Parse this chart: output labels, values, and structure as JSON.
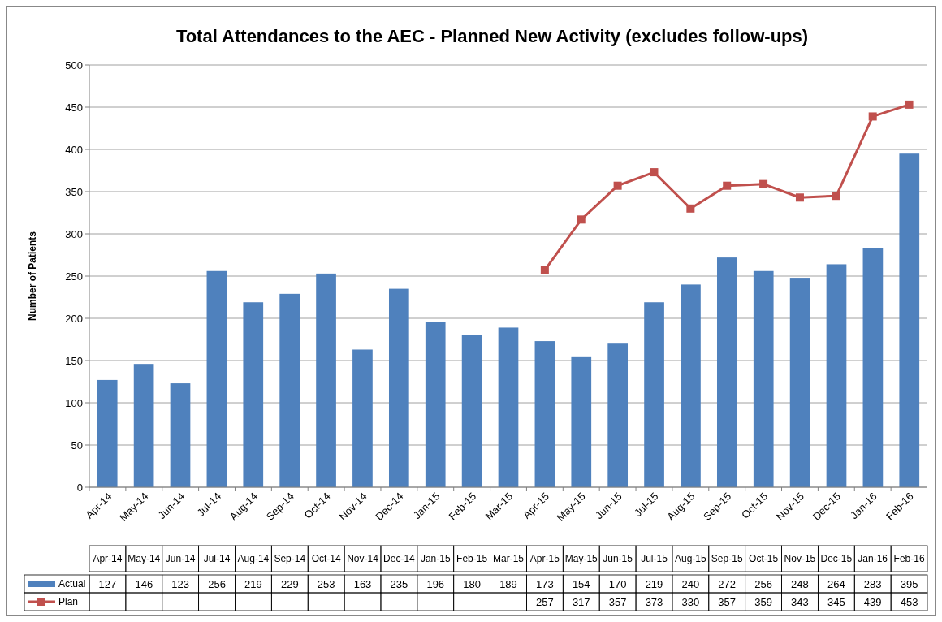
{
  "chart_data": {
    "type": "bar",
    "title": "Total Attendances to the AEC - Planned New Activity (excludes follow-ups)",
    "ylabel": "Number of Patients",
    "categories": [
      "Apr-14",
      "May-14",
      "Jun-14",
      "Jul-14",
      "Aug-14",
      "Sep-14",
      "Oct-14",
      "Nov-14",
      "Dec-14",
      "Jan-15",
      "Feb-15",
      "Mar-15",
      "Apr-15",
      "May-15",
      "Jun-15",
      "Jul-15",
      "Aug-15",
      "Sep-15",
      "Oct-15",
      "Nov-15",
      "Dec-15",
      "Jan-16",
      "Feb-16"
    ],
    "series": [
      {
        "name": "Actual",
        "color": "#4f81bd",
        "values": [
          127,
          146,
          123,
          256,
          219,
          229,
          253,
          163,
          235,
          196,
          180,
          189,
          173,
          154,
          170,
          219,
          240,
          272,
          256,
          248,
          264,
          283,
          395
        ]
      },
      {
        "name": "Plan",
        "type": "line",
        "color": "#c0504d",
        "marker": "square",
        "values": [
          null,
          null,
          null,
          null,
          null,
          null,
          null,
          null,
          null,
          null,
          null,
          null,
          257,
          317,
          357,
          373,
          330,
          357,
          359,
          343,
          345,
          439,
          453
        ]
      }
    ],
    "ylim": [
      0,
      500
    ],
    "yticks": [
      0,
      50,
      100,
      150,
      200,
      250,
      300,
      350,
      400,
      450,
      500
    ],
    "grid": "y",
    "legend": "bottom",
    "data_labels": true
  }
}
